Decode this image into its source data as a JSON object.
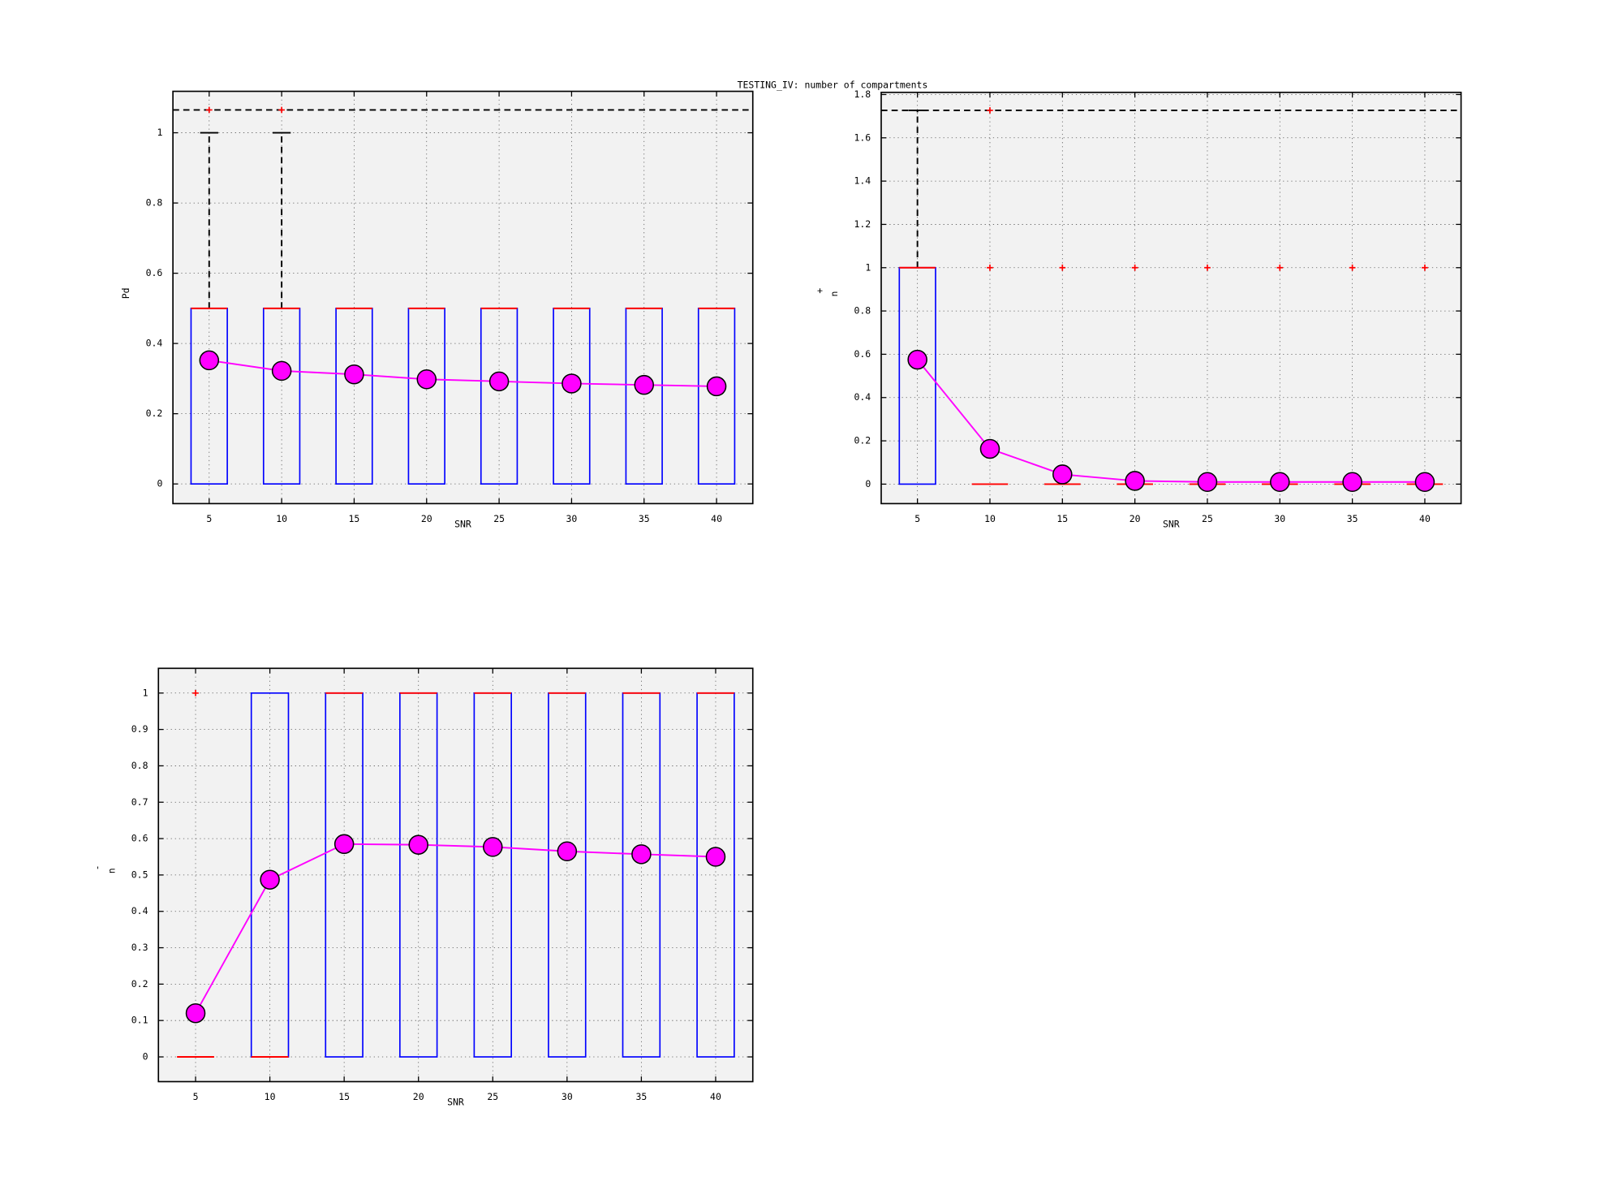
{
  "title": "TESTING_IV: number of compartments",
  "chart_data": [
    {
      "type": "box",
      "xlabel": "SNR",
      "ylabel": "Pd",
      "x": [
        5,
        10,
        15,
        20,
        25,
        30,
        35,
        40
      ],
      "xlim": [
        2.5,
        42.5
      ],
      "xticks": [
        5,
        10,
        15,
        20,
        25,
        30,
        35,
        40
      ],
      "ylim": [
        -0.056,
        1.118
      ],
      "yticks": [
        0,
        0.2,
        0.4,
        0.6,
        0.8,
        1
      ],
      "grid": true,
      "q1": [
        0,
        0,
        0,
        0,
        0,
        0,
        0,
        0
      ],
      "median": [
        0.5,
        0.5,
        0.5,
        0.5,
        0.5,
        0.5,
        0.5,
        0.5
      ],
      "q3": [
        0.5,
        0.5,
        0.5,
        0.5,
        0.5,
        0.5,
        0.5,
        0.5
      ],
      "whisker_high": [
        1,
        1,
        null,
        null,
        null,
        null,
        null,
        null
      ],
      "outliers": [
        [
          1.065
        ],
        [
          1.065
        ],
        [],
        [],
        [],
        [],
        [],
        []
      ],
      "reference_line": 1.065,
      "mean": [
        0.352,
        0.322,
        0.312,
        0.298,
        0.292,
        0.286,
        0.282,
        0.278
      ],
      "box_color": "#0000ff",
      "median_color": "#ff0000",
      "outlier_color": "#ff0000",
      "mean_color": "#ff00ff"
    },
    {
      "type": "box",
      "xlabel": "SNR",
      "ylabel": "n",
      "ylabel_sup": "+",
      "x": [
        5,
        10,
        15,
        20,
        25,
        30,
        35,
        40
      ],
      "xlim": [
        2.5,
        42.5
      ],
      "xticks": [
        5,
        10,
        15,
        20,
        25,
        30,
        35,
        40
      ],
      "ylim": [
        -0.09,
        1.81
      ],
      "yticks": [
        0,
        0.2,
        0.4,
        0.6,
        0.8,
        1,
        1.2,
        1.4,
        1.6,
        1.8
      ],
      "grid": true,
      "q1": [
        0,
        0,
        0,
        0,
        0,
        0,
        0,
        0
      ],
      "median": [
        1,
        0,
        0,
        0,
        0,
        0,
        0,
        0
      ],
      "q3": [
        1,
        0,
        0,
        0,
        0,
        0,
        0,
        0
      ],
      "whisker_high": [
        1.727,
        null,
        null,
        null,
        null,
        null,
        null,
        null
      ],
      "outliers": [
        [],
        [
          1,
          1.727
        ],
        [
          1
        ],
        [
          1
        ],
        [
          1
        ],
        [
          1
        ],
        [
          1
        ],
        [
          1
        ]
      ],
      "reference_line": 1.727,
      "mean": [
        0.575,
        0.163,
        0.045,
        0.015,
        0.01,
        0.01,
        0.01,
        0.01
      ],
      "box_color": "#0000ff",
      "median_color": "#ff0000",
      "outlier_color": "#ff0000",
      "mean_color": "#ff00ff"
    },
    {
      "type": "box",
      "xlabel": "SNR",
      "ylabel": "n",
      "ylabel_sup": "-",
      "x": [
        5,
        10,
        15,
        20,
        25,
        30,
        35,
        40
      ],
      "xlim": [
        2.5,
        42.5
      ],
      "xticks": [
        5,
        10,
        15,
        20,
        25,
        30,
        35,
        40
      ],
      "ylim": [
        -0.068,
        1.068
      ],
      "yticks": [
        0,
        0.1,
        0.2,
        0.3,
        0.4,
        0.5,
        0.6,
        0.7,
        0.8,
        0.9,
        1
      ],
      "grid": true,
      "q1": [
        0,
        0,
        0,
        0,
        0,
        0,
        0,
        0
      ],
      "median": [
        0,
        0,
        1,
        1,
        1,
        1,
        1,
        1
      ],
      "q3": [
        0,
        1,
        1,
        1,
        1,
        1,
        1,
        1
      ],
      "whisker_high": [
        null,
        null,
        null,
        null,
        null,
        null,
        null,
        null
      ],
      "outliers": [
        [
          1
        ],
        [],
        [],
        [],
        [],
        [],
        [],
        []
      ],
      "reference_line": null,
      "mean": [
        0.12,
        0.487,
        0.585,
        0.583,
        0.577,
        0.565,
        0.557,
        0.55
      ],
      "box_color": "#0000ff",
      "median_color": "#ff0000",
      "outlier_color": "#ff0000",
      "mean_color": "#ff00ff"
    }
  ]
}
